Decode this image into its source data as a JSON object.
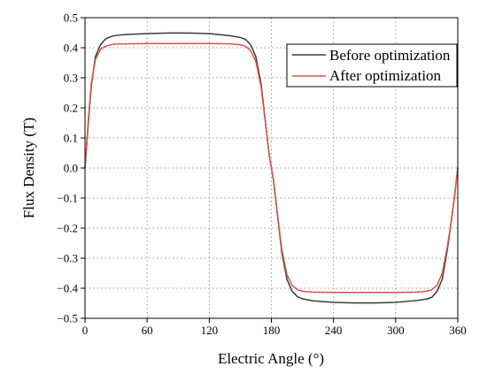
{
  "chart_data": {
    "type": "line",
    "title": "",
    "xlabel": "Electric Angle (°)",
    "ylabel": "Flux Density (T)",
    "xlim": [
      0,
      360
    ],
    "ylim": [
      -0.5,
      0.5
    ],
    "xticks": [
      0,
      60,
      120,
      180,
      240,
      300,
      360
    ],
    "xtick_labels": [
      "0",
      "60",
      "120",
      "180",
      "240",
      "300",
      "360"
    ],
    "yticks": [
      0.5,
      0.4,
      0.3,
      0.2,
      0.1,
      0.0,
      -0.1,
      -0.2,
      -0.3,
      -0.4,
      -0.5
    ],
    "ytick_labels": [
      "0.5",
      "0.4",
      "0.3",
      "0.2",
      "0.1",
      "0.0",
      "−0.1",
      "−0.2",
      "−0.3",
      "−0.4",
      "−0.5"
    ],
    "grid": true,
    "legend_position": "top-right",
    "series": [
      {
        "name": "Before optimization",
        "color": "#3a3a3a",
        "x": [
          0,
          3,
          6,
          10,
          15,
          20,
          25,
          30,
          40,
          60,
          80,
          100,
          120,
          140,
          150,
          155,
          160,
          165,
          170,
          175,
          178,
          180,
          182,
          185,
          190,
          195,
          200,
          205,
          210,
          220,
          240,
          260,
          280,
          300,
          320,
          330,
          335,
          340,
          345,
          350,
          354,
          357,
          360
        ],
        "values": [
          0.0,
          0.14,
          0.27,
          0.37,
          0.41,
          0.43,
          0.437,
          0.441,
          0.444,
          0.447,
          0.449,
          0.449,
          0.447,
          0.44,
          0.434,
          0.428,
          0.41,
          0.37,
          0.28,
          0.13,
          0.04,
          0.0,
          -0.04,
          -0.13,
          -0.28,
          -0.37,
          -0.41,
          -0.428,
          -0.435,
          -0.442,
          -0.447,
          -0.449,
          -0.449,
          -0.447,
          -0.441,
          -0.436,
          -0.43,
          -0.41,
          -0.37,
          -0.27,
          -0.17,
          -0.09,
          0.0
        ]
      },
      {
        "name": "After optimization",
        "color": "#d9534a",
        "x": [
          0,
          3,
          6,
          10,
          15,
          20,
          25,
          30,
          40,
          60,
          80,
          100,
          120,
          140,
          150,
          155,
          160,
          165,
          170,
          175,
          178,
          180,
          182,
          185,
          190,
          195,
          200,
          205,
          210,
          220,
          240,
          260,
          280,
          300,
          320,
          330,
          335,
          340,
          345,
          350,
          354,
          357,
          360
        ],
        "values": [
          0.0,
          0.15,
          0.28,
          0.36,
          0.395,
          0.405,
          0.41,
          0.412,
          0.413,
          0.414,
          0.414,
          0.414,
          0.414,
          0.413,
          0.41,
          0.405,
          0.39,
          0.355,
          0.27,
          0.13,
          0.04,
          0.0,
          -0.04,
          -0.13,
          -0.27,
          -0.355,
          -0.39,
          -0.405,
          -0.41,
          -0.413,
          -0.414,
          -0.414,
          -0.414,
          -0.414,
          -0.413,
          -0.41,
          -0.405,
          -0.39,
          -0.35,
          -0.26,
          -0.17,
          -0.09,
          0.0
        ]
      }
    ]
  }
}
